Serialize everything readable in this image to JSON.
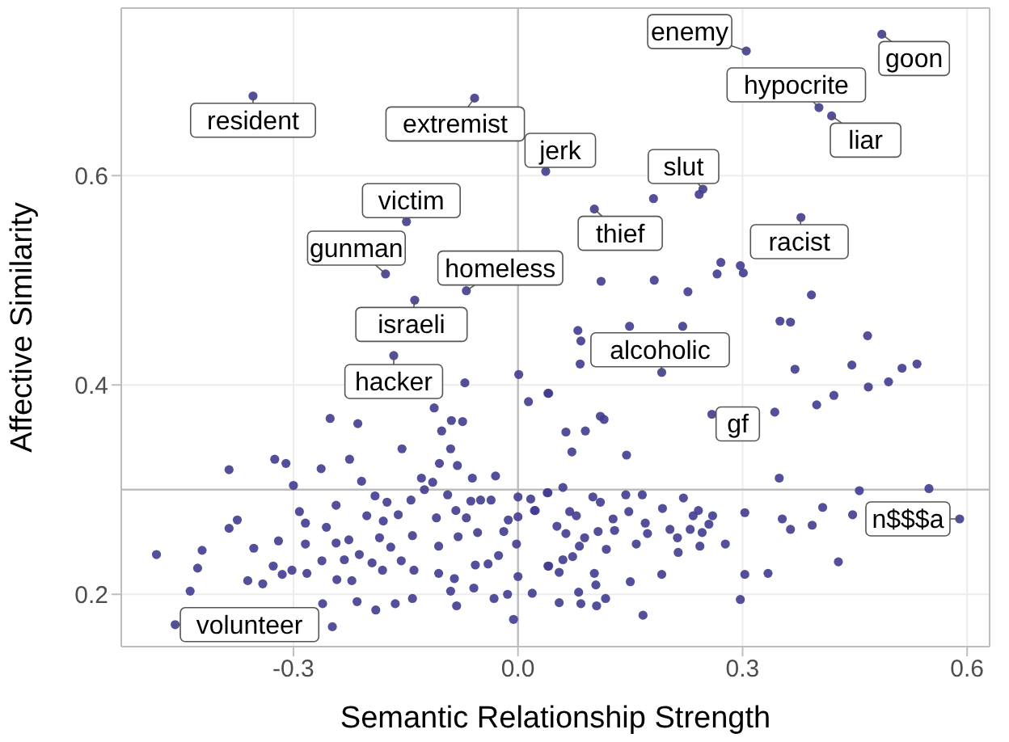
{
  "chart_data": {
    "type": "scatter",
    "xlabel": "Semantic Relationship Strength",
    "ylabel": "Affective Similarity",
    "xlim": [
      -0.53,
      0.63
    ],
    "ylim": [
      0.15,
      0.76
    ],
    "xticks": [
      -0.3,
      {
        "value": 0,
        "label": "0.0"
      },
      0.3,
      0.6
    ],
    "yticks": [
      0.2,
      0.4,
      0.6
    ],
    "grid": true,
    "legend": false,
    "marker": "circle",
    "ref_lines": [
      {
        "axis": "x",
        "value": 0,
        "color": "#bdbdbd"
      },
      {
        "axis": "y",
        "value": 0.3,
        "color": "#bdbdbd"
      }
    ],
    "annotations": [
      {
        "text": "resident",
        "x": -0.354,
        "y": 0.676
      },
      {
        "text": "extremist",
        "x": -0.058,
        "y": 0.674
      },
      {
        "text": "jerk",
        "x": 0.037,
        "y": 0.604
      },
      {
        "text": "victim",
        "x": -0.149,
        "y": 0.556
      },
      {
        "text": "gunman",
        "x": -0.177,
        "y": 0.506
      },
      {
        "text": "homeless",
        "x": -0.069,
        "y": 0.49
      },
      {
        "text": "israeli",
        "x": -0.138,
        "y": 0.481
      },
      {
        "text": "hacker",
        "x": -0.166,
        "y": 0.428
      },
      {
        "text": "enemy",
        "x": 0.305,
        "y": 0.719
      },
      {
        "text": "goon",
        "x": 0.486,
        "y": 0.735
      },
      {
        "text": "hypocrite",
        "x": 0.402,
        "y": 0.665
      },
      {
        "text": "liar",
        "x": 0.419,
        "y": 0.657
      },
      {
        "text": "slut",
        "x": 0.247,
        "y": 0.587
      },
      {
        "text": "thief",
        "x": 0.102,
        "y": 0.568
      },
      {
        "text": "racist",
        "x": 0.378,
        "y": 0.56
      },
      {
        "text": "alcoholic",
        "x": 0.192,
        "y": 0.412
      },
      {
        "text": "gf",
        "x": 0.259,
        "y": 0.372
      },
      {
        "text": "n$$$a",
        "x": 0.59,
        "y": 0.272
      },
      {
        "text": "volunteer",
        "x": -0.458,
        "y": 0.171
      }
    ],
    "series": [
      {
        "color": "#413c8f",
        "x": [
          -0.354,
          -0.058,
          0.037,
          -0.149,
          -0.177,
          -0.069,
          -0.138,
          -0.166,
          0.305,
          0.486,
          0.402,
          0.419,
          0.247,
          0.242,
          0.102,
          0.378,
          0.192,
          0.259,
          0.59,
          -0.458,
          -0.483,
          -0.438,
          -0.428,
          -0.422,
          -0.386,
          -0.375,
          -0.386,
          -0.353,
          -0.361,
          -0.341,
          -0.325,
          -0.31,
          -0.3,
          -0.292,
          -0.284,
          -0.284,
          -0.32,
          -0.302,
          -0.327,
          -0.315,
          -0.282,
          -0.261,
          -0.251,
          -0.263,
          -0.225,
          -0.214,
          -0.209,
          -0.243,
          -0.256,
          -0.243,
          -0.226,
          -0.262,
          -0.232,
          -0.242,
          -0.222,
          -0.215,
          -0.248,
          -0.202,
          -0.191,
          -0.18,
          -0.175,
          -0.16,
          -0.185,
          -0.17,
          -0.141,
          -0.156,
          -0.212,
          -0.195,
          -0.181,
          -0.19,
          -0.164,
          -0.141,
          -0.139,
          -0.129,
          -0.114,
          -0.155,
          -0.125,
          -0.143,
          -0.112,
          -0.102,
          -0.089,
          -0.074,
          -0.09,
          -0.105,
          -0.081,
          -0.061,
          -0.03,
          -0.094,
          -0.109,
          -0.083,
          -0.063,
          -0.05,
          -0.036,
          -0.069,
          -0.08,
          -0.054,
          -0.019,
          -0.013,
          0,
          0,
          0.017,
          0.022,
          0.001,
          0.014,
          0.04,
          -0.002,
          -0.026,
          -0.04,
          -0.057,
          -0.106,
          -0.106,
          -0.085,
          -0.09,
          -0.059,
          -0.032,
          -0.014,
          0.019,
          0,
          -0.006,
          -0.082,
          0.041,
          0.04,
          -0.071,
          0.08,
          0.084,
          0.083,
          0.149,
          0.22,
          0.35,
          0.364,
          0.467,
          0.37,
          0.446,
          0.468,
          0.495,
          0.513,
          0.533,
          0.041,
          0.11,
          0.115,
          0.064,
          0.09,
          0.072,
          0.145,
          0.343,
          0.399,
          0.422,
          0.349,
          0.456,
          0.549,
          0.447,
          0.407,
          0.393,
          0.364,
          0.353,
          0.428,
          0.303,
          0.334,
          0.303,
          0.297,
          0.167,
          0.039,
          0.06,
          0.023,
          0.052,
          0.069,
          0.078,
          0.064,
          0.089,
          0.082,
          0.04,
          0.06,
          0.073,
          0.055,
          0.102,
          0.104,
          0.081,
          0.055,
          0.084,
          0.105,
          0.117,
          0.1,
          0.11,
          0.144,
          0.166,
          0.221,
          0.193,
          0.148,
          0.129,
          0.127,
          0.107,
          0.118,
          0.17,
          0.173,
          0.158,
          0.203,
          0.213,
          0.214,
          0.234,
          0.241,
          0.26,
          0.23,
          0.255,
          0.246,
          0.243,
          0.277,
          0.192,
          0.15,
          0.181,
          0.111,
          0.182,
          0.227,
          0.271,
          0.266,
          0.297,
          0.301,
          0.392
        ],
        "values": [
          0.676,
          0.674,
          0.604,
          0.556,
          0.506,
          0.49,
          0.481,
          0.428,
          0.719,
          0.735,
          0.665,
          0.657,
          0.587,
          0.582,
          0.568,
          0.56,
          0.412,
          0.372,
          0.272,
          0.171,
          0.238,
          0.203,
          0.225,
          0.242,
          0.263,
          0.271,
          0.319,
          0.244,
          0.213,
          0.21,
          0.329,
          0.325,
          0.304,
          0.279,
          0.268,
          0.248,
          0.251,
          0.223,
          0.227,
          0.219,
          0.22,
          0.191,
          0.368,
          0.32,
          0.329,
          0.363,
          0.308,
          0.285,
          0.264,
          0.249,
          0.252,
          0.232,
          0.233,
          0.214,
          0.213,
          0.193,
          0.169,
          0.275,
          0.294,
          0.27,
          0.288,
          0.276,
          0.254,
          0.245,
          0.256,
          0.232,
          0.238,
          0.23,
          0.223,
          0.185,
          0.191,
          0.196,
          0.223,
          0.311,
          0.307,
          0.339,
          0.3,
          0.29,
          0.378,
          0.356,
          0.366,
          0.365,
          0.339,
          0.325,
          0.323,
          0.311,
          0.313,
          0.295,
          0.273,
          0.28,
          0.289,
          0.29,
          0.29,
          0.273,
          0.255,
          0.259,
          0.26,
          0.271,
          0.274,
          0.293,
          0.291,
          0.28,
          0.41,
          0.384,
          0.392,
          0.248,
          0.237,
          0.229,
          0.228,
          0.246,
          0.22,
          0.215,
          0.203,
          0.206,
          0.196,
          0.2,
          0.201,
          0.217,
          0.176,
          0.189,
          0.227,
          0.297,
          0.402,
          0.452,
          0.442,
          0.42,
          0.456,
          0.456,
          0.461,
          0.46,
          0.447,
          0.415,
          0.419,
          0.398,
          0.403,
          0.416,
          0.42,
          0.392,
          0.37,
          0.367,
          0.355,
          0.356,
          0.336,
          0.333,
          0.374,
          0.381,
          0.39,
          0.311,
          0.299,
          0.301,
          0.276,
          0.283,
          0.266,
          0.262,
          0.272,
          0.231,
          0.278,
          0.22,
          0.219,
          0.195,
          0.18,
          0.297,
          0.302,
          0.28,
          0.265,
          0.279,
          0.275,
          0.258,
          0.254,
          0.246,
          0.227,
          0.233,
          0.236,
          0.221,
          0.22,
          0.209,
          0.202,
          0.192,
          0.191,
          0.189,
          0.196,
          0.293,
          0.288,
          0.295,
          0.295,
          0.292,
          0.282,
          0.279,
          0.261,
          0.272,
          0.26,
          0.243,
          0.268,
          0.258,
          0.248,
          0.262,
          0.254,
          0.24,
          0.275,
          0.28,
          0.275,
          0.262,
          0.267,
          0.259,
          0.246,
          0.248,
          0.219,
          0.212,
          0.578,
          0.499,
          0.5,
          0.489,
          0.517,
          0.506,
          0.514,
          0.507,
          0.486
        ]
      }
    ]
  }
}
